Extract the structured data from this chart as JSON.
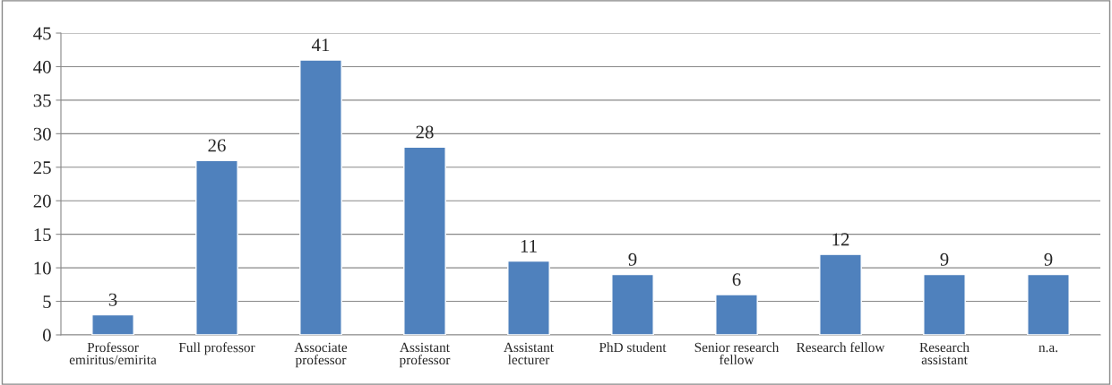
{
  "chart_data": {
    "type": "bar",
    "categories": [
      "Professor\nemiritus/emirita",
      "Full professor",
      "Associate\nprofessor",
      "Assistant\nprofessor",
      "Assistant\nlecturer",
      "PhD student",
      "Senior research\nfellow",
      "Research fellow",
      "Research\nassistant",
      "n.a."
    ],
    "values": [
      3,
      26,
      41,
      28,
      11,
      9,
      6,
      12,
      9,
      9
    ],
    "color": "#4f81bd",
    "ylim": [
      0,
      45
    ],
    "yticks": [
      0,
      5,
      10,
      15,
      20,
      25,
      30,
      35,
      40,
      45
    ],
    "grid": "y",
    "data_labels": true
  }
}
